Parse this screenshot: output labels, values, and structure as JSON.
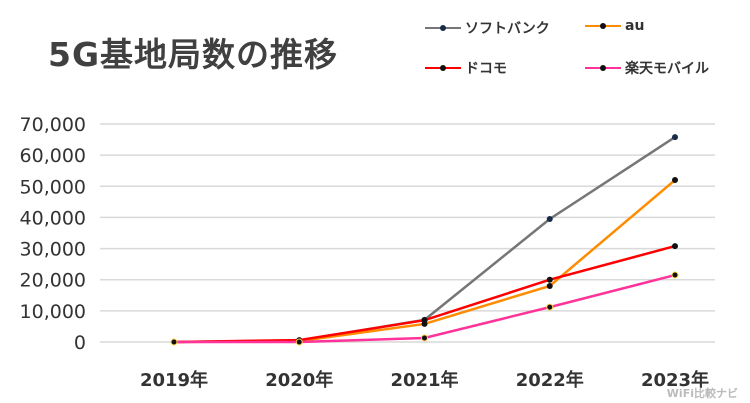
{
  "chart_data": {
    "type": "line",
    "title": "5G基地局数の推移",
    "categories": [
      "2019年",
      "2020年",
      "2021年",
      "2022年",
      "2023年"
    ],
    "ylim": [
      0,
      70000
    ],
    "yticks": [
      "0",
      "10,000",
      "20,000",
      "30,000",
      "40,000",
      "50,000",
      "60,000",
      "70,000"
    ],
    "grid": true,
    "legend": "top-right",
    "series": [
      {
        "name": "ソフトバンク",
        "color": "#767676",
        "values": [
          0,
          500,
          7100,
          39500,
          65800
        ]
      },
      {
        "name": "au",
        "color": "#ff8c00",
        "values": [
          0,
          300,
          5800,
          18000,
          52000
        ]
      },
      {
        "name": "ドコモ",
        "color": "#ff0000",
        "values": [
          0,
          600,
          7000,
          20000,
          30800
        ]
      },
      {
        "name": "楽天モバイル",
        "color": "#ff3399",
        "values": [
          0,
          0,
          1300,
          11200,
          21500
        ]
      }
    ]
  },
  "watermark": "WiFi比較ナビ"
}
